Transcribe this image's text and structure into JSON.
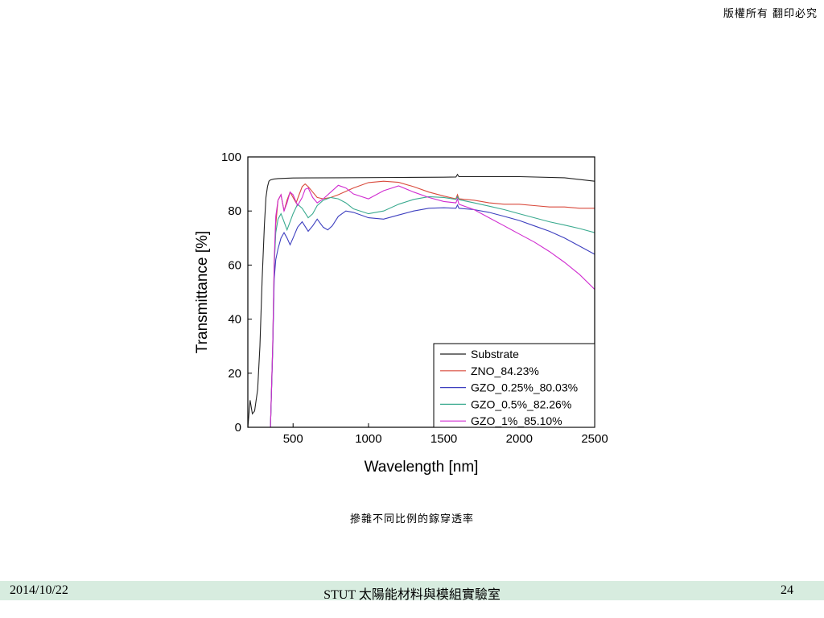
{
  "header": {
    "copyright": "版權所有 翻印必究"
  },
  "caption": "摻雜不同比例的鎵穿透率",
  "footer": {
    "date": "2014/10/22",
    "title": "STUT 太陽能材料與模組實驗室",
    "page": "24"
  },
  "chart_data": {
    "type": "line",
    "title": "",
    "xlabel": "Wavelength [nm]",
    "ylabel": "Transmittance [%]",
    "xlim": [
      200,
      2500
    ],
    "ylim": [
      0,
      100
    ],
    "xticks": [
      500,
      1000,
      1500,
      2000,
      2500
    ],
    "yticks": [
      0,
      20,
      40,
      60,
      80,
      100
    ],
    "grid": false,
    "legend_position": "bottom-right",
    "series": [
      {
        "name": "Substrate",
        "color": "#222222",
        "x": [
          200,
          215,
          230,
          245,
          265,
          280,
          295,
          310,
          320,
          330,
          340,
          350,
          370,
          400,
          500,
          800,
          1200,
          1500,
          1580,
          1590,
          1600,
          2000,
          2300,
          2500
        ],
        "y": [
          0,
          10,
          5,
          6,
          14,
          30,
          55,
          75,
          85,
          89,
          91,
          91.5,
          91.8,
          92,
          92.2,
          92.3,
          92.4,
          92.5,
          92.6,
          93.5,
          92.7,
          92.7,
          92.3,
          91
        ]
      },
      {
        "name": "ZNO_84.23%",
        "color": "#d94a3c",
        "x": [
          200,
          350,
          365,
          375,
          385,
          400,
          420,
          440,
          460,
          480,
          500,
          520,
          540,
          560,
          580,
          600,
          630,
          660,
          700,
          750,
          800,
          900,
          1000,
          1100,
          1200,
          1300,
          1400,
          1500,
          1580,
          1590,
          1600,
          1700,
          1800,
          1900,
          2000,
          2100,
          2200,
          2300,
          2400,
          2500
        ],
        "y": [
          0,
          0,
          30,
          60,
          75,
          84,
          86,
          80,
          84,
          87,
          85,
          83,
          86,
          89,
          90,
          89,
          87,
          85,
          84.5,
          85,
          86,
          88.5,
          90.5,
          91,
          90.6,
          89,
          87,
          85.5,
          84.5,
          86,
          84.5,
          84,
          83,
          82.5,
          82.5,
          82,
          81.5,
          81.5,
          81,
          81
        ]
      },
      {
        "name": "GZO_0.25%_80.03%",
        "color": "#3d3fbf",
        "x": [
          200,
          350,
          365,
          375,
          385,
          400,
          420,
          440,
          460,
          480,
          500,
          530,
          560,
          600,
          630,
          660,
          700,
          730,
          760,
          800,
          850,
          900,
          1000,
          1100,
          1200,
          1300,
          1400,
          1500,
          1580,
          1590,
          1600,
          1700,
          1800,
          1900,
          2000,
          2100,
          2200,
          2300,
          2400,
          2500
        ],
        "y": [
          0,
          0,
          28,
          55,
          62,
          66,
          70,
          72,
          70,
          67.5,
          70,
          74,
          76,
          72.5,
          74.5,
          77,
          74,
          73,
          74.5,
          78,
          80,
          79.5,
          77.5,
          77,
          78.5,
          80,
          81,
          81.2,
          81,
          82.2,
          81,
          80.5,
          79.5,
          78,
          76.5,
          74.5,
          72.5,
          70,
          67,
          64
        ]
      },
      {
        "name": "GZO_0.5%_82.26%",
        "color": "#3aaa8f",
        "x": [
          200,
          350,
          365,
          375,
          385,
          400,
          420,
          440,
          460,
          480,
          500,
          530,
          560,
          600,
          630,
          660,
          700,
          750,
          800,
          850,
          900,
          1000,
          1100,
          1200,
          1300,
          1400,
          1500,
          1580,
          1590,
          1600,
          1700,
          1800,
          1900,
          2000,
          2100,
          2200,
          2300,
          2400,
          2500
        ],
        "y": [
          0,
          0,
          30,
          60,
          72,
          77,
          79,
          76,
          73,
          76,
          79,
          82.5,
          81,
          77.5,
          79,
          82,
          84,
          85,
          84.5,
          83,
          80.8,
          79,
          80,
          82.5,
          84.3,
          85.3,
          85,
          84.3,
          85.3,
          84.2,
          83,
          81.8,
          80.5,
          79,
          77.5,
          76,
          74.8,
          73.5,
          72
        ]
      },
      {
        "name": "GZO_1%_85.10%",
        "color": "#d02cd0",
        "x": [
          200,
          350,
          365,
          375,
          385,
          400,
          420,
          440,
          460,
          480,
          500,
          530,
          560,
          580,
          600,
          630,
          660,
          700,
          750,
          800,
          850,
          900,
          1000,
          1100,
          1200,
          1300,
          1400,
          1500,
          1580,
          1590,
          1600,
          1700,
          1800,
          1900,
          2000,
          2100,
          2200,
          2300,
          2400,
          2500
        ],
        "y": [
          0,
          0,
          30,
          62,
          78,
          84,
          86,
          80,
          83,
          87,
          86,
          82,
          85,
          88,
          88.5,
          85,
          83,
          84.5,
          87,
          89.5,
          88.5,
          86.3,
          84.5,
          87.5,
          89.3,
          87,
          85,
          83.5,
          83,
          84.5,
          82.5,
          80.5,
          77.5,
          74.5,
          71.5,
          68.5,
          65,
          61,
          56.5,
          51
        ]
      }
    ]
  }
}
